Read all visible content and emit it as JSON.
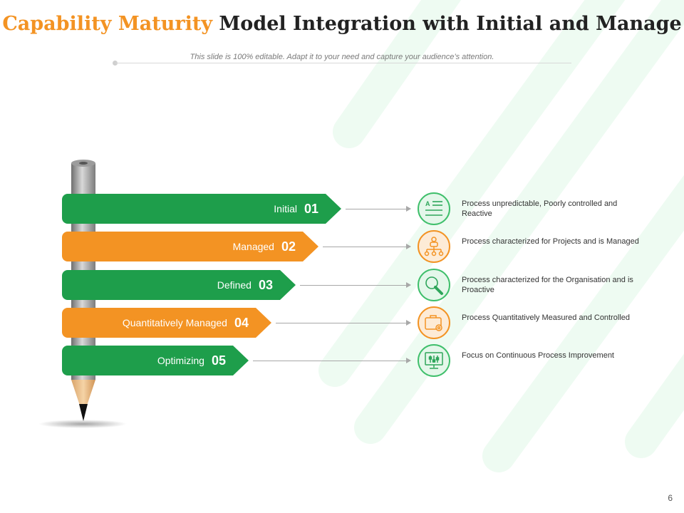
{
  "title": {
    "accent": "Capability Maturity",
    "rest": "Model Integration with Initial and Manage"
  },
  "subtitle": "This slide is 100% editable. Adapt it to your need and capture your audience’s attention.",
  "colors": {
    "green": "#1e9e4b",
    "orange": "#f39323",
    "stripe": "#eefbf2"
  },
  "levels": [
    {
      "label": "Initial",
      "number": "01",
      "color": "green",
      "icon": "text-list-icon",
      "description": "Process unpredictable, Poorly controlled and Reactive"
    },
    {
      "label": "Managed",
      "number": "02",
      "color": "orange",
      "icon": "org-chart-icon",
      "description": "Process characterized for Projects and is Managed"
    },
    {
      "label": "Defined",
      "number": "03",
      "color": "green",
      "icon": "magnifier-icon",
      "description": "Process characterized for the Organisation and is Proactive"
    },
    {
      "label": "Quantitatively Managed",
      "number": "04",
      "color": "orange",
      "icon": "briefcase-gear-icon",
      "description": "Process Quantitatively Measured and Controlled"
    },
    {
      "label": "Optimizing",
      "number": "05",
      "color": "green",
      "icon": "monitor-sliders-icon",
      "description": "Focus on Continuous Process Improvement"
    }
  ],
  "page_number": "6"
}
